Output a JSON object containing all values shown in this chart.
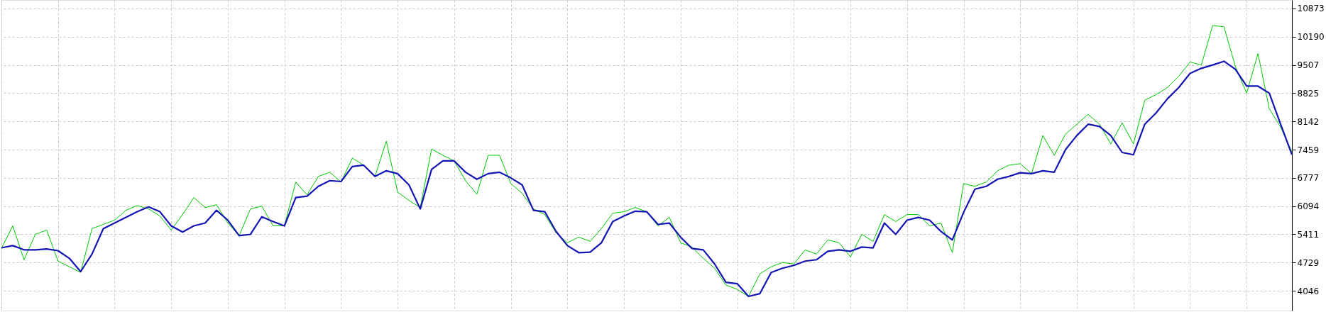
{
  "chart_data": {
    "type": "line",
    "categories": [
      null,
      null,
      null,
      null,
      null,
      null,
      null,
      null,
      null,
      null,
      null,
      null,
      null,
      null,
      null,
      null,
      null,
      null,
      null,
      null,
      null,
      null,
      null,
      null,
      null,
      null,
      null,
      null,
      null,
      null,
      null,
      null,
      null,
      null,
      null,
      null,
      null,
      null,
      null,
      null,
      null,
      null,
      null,
      null,
      null,
      null,
      null,
      null,
      null,
      null,
      null,
      null,
      null,
      null,
      null,
      null,
      null,
      null,
      null,
      null,
      null,
      null,
      null,
      null,
      null,
      null,
      null,
      null,
      null,
      null,
      null,
      null,
      null,
      null,
      null,
      null,
      null,
      null,
      null,
      null,
      null,
      null,
      null,
      null,
      null,
      null,
      null,
      null,
      null,
      null,
      null,
      null,
      null,
      null,
      null,
      null,
      null,
      null,
      null,
      null,
      null,
      null,
      null,
      null,
      null,
      null,
      null,
      null,
      null,
      null,
      null,
      null,
      null,
      null,
      null
    ],
    "series": [
      {
        "color": "#00c800",
        "values": [
          5070,
          5616,
          4797,
          5411,
          5514,
          4763,
          4626,
          4490,
          5548,
          5650,
          5753,
          5992,
          6108,
          6026,
          5855,
          5514,
          5889,
          6299,
          6060,
          6128,
          5684,
          5377,
          6026,
          6094,
          5616,
          5616,
          6675,
          6367,
          6811,
          6913,
          6675,
          7255,
          7084,
          6811,
          7664,
          6435,
          6231,
          6060,
          7473,
          7323,
          7186,
          6709,
          6380,
          7323,
          7323,
          6640,
          6401,
          6026,
          5889,
          5446,
          5207,
          5343,
          5241,
          5548,
          5923,
          5958,
          6060,
          5958,
          5616,
          5821,
          5207,
          5104,
          4831,
          4592,
          4183,
          4080,
          3909,
          4456,
          4626,
          4729,
          4695,
          5036,
          4933,
          5275,
          5207,
          4865,
          5411,
          5241,
          5889,
          5719,
          5889,
          5889,
          5616,
          5684,
          4970,
          6640,
          6572,
          6675,
          6948,
          7084,
          7118,
          6879,
          7801,
          7323,
          7835,
          8074,
          8313,
          8074,
          7596,
          8108,
          7596,
          8654,
          8791,
          8961,
          9234,
          9576,
          9507,
          10463,
          10429,
          9473,
          8825,
          9781,
          8449,
          8006,
          7400
        ]
      },
      {
        "color": "#1414b4",
        "values": [
          5084,
          5138,
          5036,
          5036,
          5057,
          5016,
          4831,
          4510,
          4933,
          5548,
          5684,
          5821,
          5958,
          6074,
          5958,
          5616,
          5466,
          5616,
          5684,
          5992,
          5753,
          5377,
          5411,
          5835,
          5719,
          5616,
          6299,
          6333,
          6572,
          6709,
          6688,
          7050,
          7084,
          6811,
          6948,
          6879,
          6606,
          6026,
          6981,
          7186,
          7186,
          6913,
          6743,
          6879,
          6913,
          6777,
          6606,
          5992,
          5958,
          5480,
          5138,
          4968,
          4981,
          5207,
          5719,
          5855,
          5971,
          5958,
          5650,
          5684,
          5343,
          5070,
          5036,
          4695,
          4251,
          4217,
          3909,
          3977,
          4490,
          4592,
          4660,
          4763,
          4797,
          5002,
          5036,
          5002,
          5104,
          5084,
          5684,
          5411,
          5753,
          5821,
          5753,
          5480,
          5275,
          5944,
          6504,
          6572,
          6743,
          6811,
          6900,
          6879,
          6948,
          6913,
          7459,
          7801,
          8074,
          8019,
          7801,
          7391,
          7336,
          8074,
          8347,
          8688,
          8961,
          9303,
          9426,
          9507,
          9596,
          9405,
          8995,
          8995,
          8825,
          8074,
          7336
        ]
      }
    ],
    "ylim": [
      3567,
      11078
    ],
    "yticks": [
      4046,
      4729,
      5411,
      6094,
      6777,
      7459,
      8142,
      8825,
      9507,
      10190,
      10873
    ],
    "grid": true,
    "tick_labels": "y"
  }
}
